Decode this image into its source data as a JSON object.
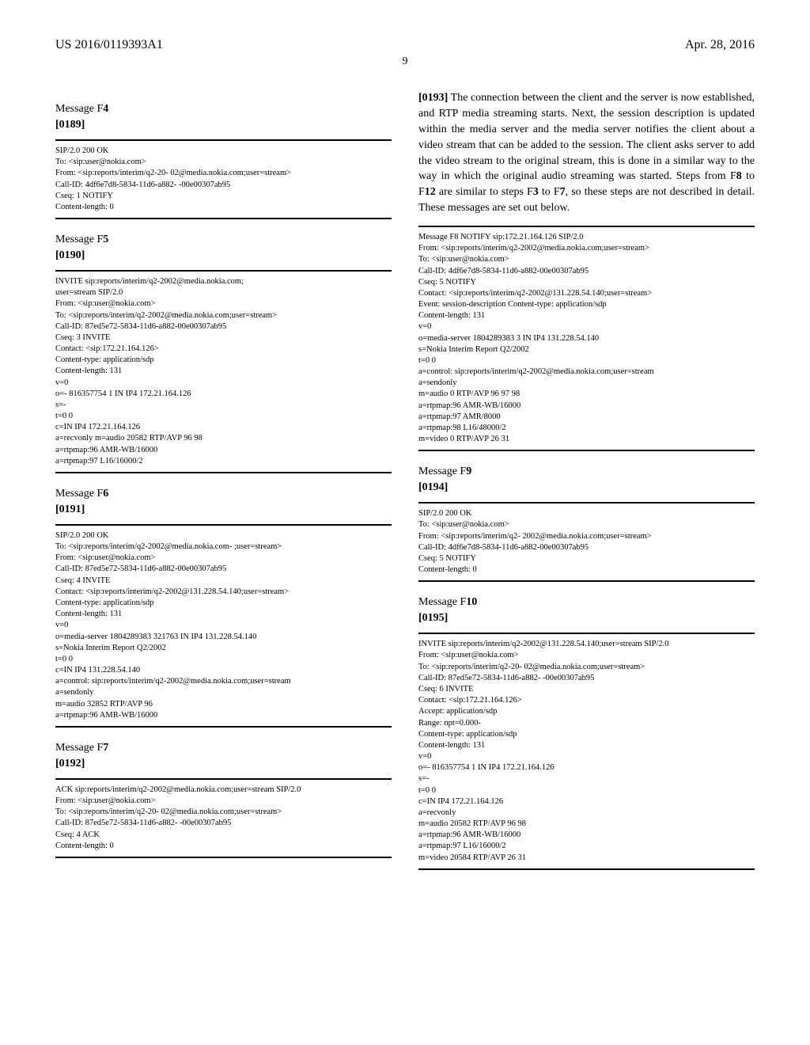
{
  "header": {
    "pub_number": "US 2016/0119393A1",
    "date": "Apr. 28, 2016",
    "page_number": "9"
  },
  "left": {
    "f4": {
      "title_pre": "Message F",
      "title_num": "4",
      "para": "[0189]",
      "code": "SIP/2.0 200 OK\nTo: <sip:user@nokia.com>\nFrom: <sip:reports/interim/q2-20- 02@media.nokia.com;user=stream>\nCall-ID: 4df6e7d8-5834-11d6-a882- -00e00307ab95\nCseq: 1 NOTIFY\nContent-length: 0"
    },
    "f5": {
      "title_pre": "Message F",
      "title_num": "5",
      "para": "[0190]",
      "code": "INVITE sip:reports/interim/q2-2002@media.nokia.com;\nuser=stream SIP/2.0\nFrom: <sip:user@nokia.com>\nTo: <sip:reports/interim/q2-2002@media.nokia.com;user=stream>\nCall-ID: 87ed5e72-5834-11d6-a882-00e00307ab95\nCseq: 3 INVITE\nContact: <sip:172.21.164.126>\nContent-type: application/sdp\nContent-length: 131\nv=0\no=- 816357754 1 IN IP4 172.21.164.126\ns=-\nt=0 0\nc=IN IP4 172.21.164.126\na=recvonly m=audio 20582 RTP/AVP 96 98\na=rtpmap:96 AMR-WB/16000\na=rtpmap:97 L16/16000/2"
    },
    "f6": {
      "title_pre": "Message F",
      "title_num": "6",
      "para": "[0191]",
      "code": "SIP/2.0 200 OK\nTo: <sip:reports/interim/q2-2002@media.nokia.com- ;user=stream>\nFrom: <sip:user@nokia.com>\nCall-ID: 87ed5e72-5834-11d6-a882-00e00307ab95\nCseq: 4 INVITE\nContact: <sip:reports/interim/q2-2002@131.228.54.140;user=stream>\nContent-type: application/sdp\nContent-length: 131\nv=0\no=media-server 1804289383 321763 IN IP4 131.228.54.140\ns=Nokia Interim Report Q2/2002\nt=0 0\nc=IN IP4 131.228.54.140\na=control: sip:reports/interim/q2-2002@media.nokia.com;user=stream\na=sendonly\nm=audio 32852 RTP/AVP 96\na=rtpmap:96 AMR-WB/16000"
    },
    "f7": {
      "title_pre": "Message F",
      "title_num": "7",
      "para": "[0192]",
      "code": "ACK sip:reports/interim/q2-2002@media.nokia.com;user=stream SIP/2.0\nFrom: <sip:user@nokia.com>\nTo: <sip:reports/interim/q2-20- 02@media.nokia.com;user=stream>\nCall-ID: 87ed5e72-5834-11d6-a882- -00e00307ab95\nCseq: 4 ACK\nContent-length: 0"
    }
  },
  "right": {
    "para0193": {
      "num": "[0193]",
      "text_before": "    The connection between the client and the server is now established, and RTP media streaming starts. Next, the session description is updated within the media server and the media server notifies the client about a video stream that can be added to the session. The client asks server to add the video stream to the original stream, this is done in a similar way to the way in which the original audio streaming was started. Steps from F",
      "bold1": "8",
      "mid1": " to F",
      "bold2": "12",
      "mid2": " are similar to steps F",
      "bold3": "3",
      "mid3": " to F",
      "bold4": "7",
      "text_after": ", so these steps are not described in detail. These messages are set out below."
    },
    "f8code": "Message F8 NOTIFY sip:172.21.164.126 SIP/2.0\nFrom: <sip:reports/interim/q2-2002@media.nokia.com;user=stream>\nTo: <sip:user@nokia.com>\nCall-ID: 4df6e7d8-5834-11d6-a882-00e00307ab95\nCseq: 5 NOTIFY\nContact: <sip:reports/interim/q2-2002@131.228.54.140;user=stream>\nEvent: session-description Content-type: application/sdp\nContent-length: 131\nv=0\no=media-server 1804289383 3 IN IP4 131.228.54.140\ns=Nokia Interim Report Q2/2002\nt=0 0\na=control: sip:reports/interim/q2-2002@media.nokia.com;user=stream\na=sendonly\nm=audio 0 RTP/AVP 96 97 98\na=rtpmap:96 AMR-WB/16000\na=rtpmap:97 AMR/8000\na=rtpmap:98 L16/48000/2\nm=video 0 RTP/AVP 26 31",
    "f9": {
      "title_pre": "Message F",
      "title_num": "9",
      "para": "[0194]",
      "code": "SIP/2.0 200 OK\nTo: <sip:user@nokia.com>\nFrom: <sip:reports/interim/q2- 2002@media.nokia.com;user=stream>\nCall-ID: 4df6e7d8-5834-11d6-a882-00e00307ab95\nCseq: 5 NOTIFY\nContent-length: 0"
    },
    "f10": {
      "title_pre": "Message F",
      "title_num": "10",
      "para": "[0195]",
      "code": "INVITE sip:reports/interim/q2-2002@131.228.54.140;user=stream SIP/2.0\nFrom: <sip:user@nokia.com>\nTo: <sip:reports/interim/q2-20- 02@media.nokia.com;user=stream>\nCall-ID: 87ed5e72-5834-11d6-a882- -00e00307ab95\nCseq: 6 INVITE\nContact: <sip:172.21.164.126>\nAccept: application/sdp\nRange: npt=0.000-\nContent-type: application/sdp\nContent-length: 131\nv=0\no=- 816357754 1 IN IP4 172.21.164.126\ns=-\nt=0 0\nc=IN IP4 172.21.164.126\na=recvonly\nm=audio 20582 RTP/AVP 96 98\na=rtpmap:96 AMR-WB/16000\na=rtpmap:97 L16/16000/2\nm=video 20584 RTP/AVP 26 31"
    }
  }
}
